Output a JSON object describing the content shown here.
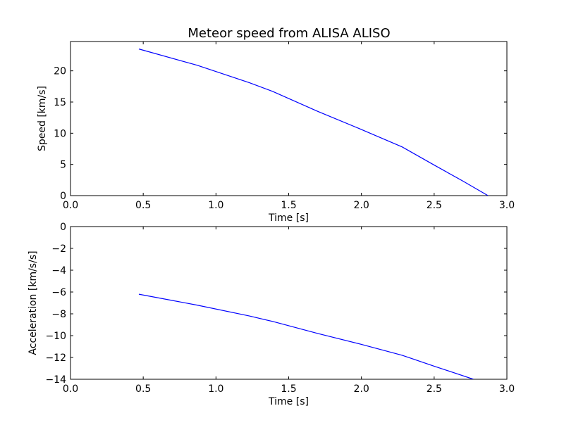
{
  "title": "Meteor speed from  ALISA ALISO",
  "colors": {
    "line": "#0000ff",
    "axes": "#000000",
    "background": "#ffffff"
  },
  "chart_data": [
    {
      "type": "line",
      "xlabel": "Time [s]",
      "ylabel": "Speed [km/s]",
      "xlim": [
        0.0,
        3.0
      ],
      "ylim": [
        0,
        24.7
      ],
      "xticks": [
        0.0,
        0.5,
        1.0,
        1.5,
        2.0,
        2.5,
        3.0
      ],
      "xtick_labels": [
        "0.0",
        "0.5",
        "1.0",
        "1.5",
        "2.0",
        "2.5",
        "3.0"
      ],
      "yticks": [
        0,
        5,
        10,
        15,
        20
      ],
      "ytick_labels": [
        "0",
        "5",
        "10",
        "15",
        "20"
      ],
      "grid": false,
      "series": [
        {
          "x": [
            0.47,
            0.87,
            1.23,
            1.39,
            1.7,
            2.0,
            2.28,
            2.5,
            2.7,
            2.87
          ],
          "y": [
            23.5,
            20.9,
            18.1,
            16.7,
            13.5,
            10.6,
            7.8,
            4.9,
            2.3,
            0.0
          ]
        }
      ]
    },
    {
      "type": "line",
      "xlabel": "Time [s]",
      "ylabel": "Acceleration [km/s/s]",
      "xlim": [
        0.0,
        3.0
      ],
      "ylim": [
        -14,
        0
      ],
      "xticks": [
        0.0,
        0.5,
        1.0,
        1.5,
        2.0,
        2.5,
        3.0
      ],
      "xtick_labels": [
        "0.0",
        "0.5",
        "1.0",
        "1.5",
        "2.0",
        "2.5",
        "3.0"
      ],
      "yticks": [
        0,
        -2,
        -4,
        -6,
        -8,
        -10,
        -12,
        -14
      ],
      "ytick_labels": [
        "0",
        "−2",
        "−4",
        "−6",
        "−8",
        "−10",
        "−12",
        "−14"
      ],
      "grid": false,
      "series": [
        {
          "x": [
            0.47,
            0.87,
            1.23,
            1.39,
            1.7,
            2.0,
            2.28,
            2.5,
            2.77
          ],
          "y": [
            -6.2,
            -7.2,
            -8.2,
            -8.7,
            -9.8,
            -10.8,
            -11.8,
            -12.8,
            -14.0
          ]
        }
      ]
    }
  ]
}
